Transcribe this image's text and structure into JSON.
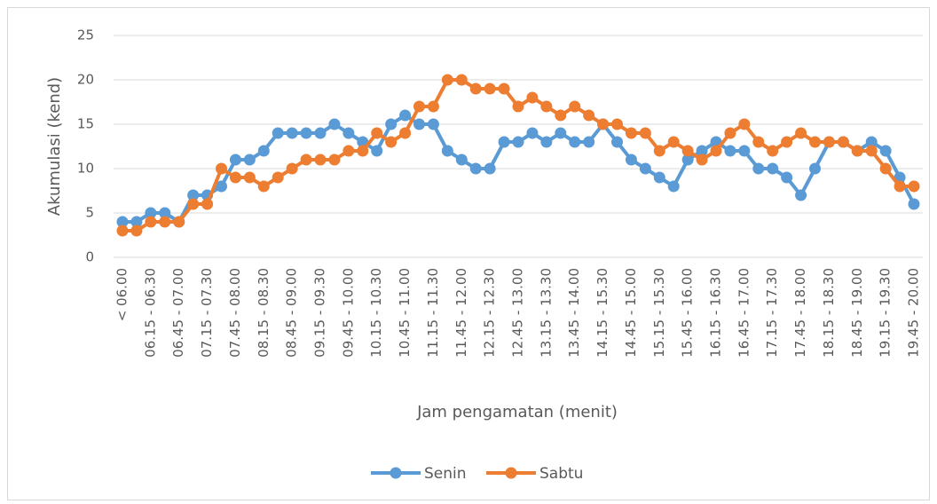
{
  "chart_data": {
    "type": "line",
    "y_label": "Akumulasi (kend)",
    "x_label": "Jam pengamatan (menit)",
    "categories": [
      "< 06.00",
      null,
      "06.15 - 06.30",
      null,
      "06.45 - 07.00",
      null,
      "07.15 - 07.30",
      null,
      "07.45 - 08.00",
      null,
      "08.15 - 08.30",
      null,
      "08.45 - 09.00",
      null,
      "09.15 - 09.30",
      null,
      "09.45 - 10.00",
      null,
      "10.15 - 10.30",
      null,
      "10.45 - 11.00",
      null,
      "11.15 - 11.30",
      null,
      "11.45 - 12.00",
      null,
      "12.15 - 12.30",
      null,
      "12.45 - 13.00",
      null,
      "13.15 - 13.30",
      null,
      "13.45 - 14.00",
      null,
      "14.15 - 15.30",
      null,
      "14.45 - 15.00",
      null,
      "15.15 - 15.30",
      null,
      "15.45 - 16.00",
      null,
      "16.15 - 16.30",
      null,
      "16.45 - 17.00",
      null,
      "17.15 - 17.30",
      null,
      "17.45 - 18.00",
      null,
      "18.15 - 18.30",
      null,
      "18.45 - 19.00",
      null,
      "19.15 - 19.30",
      null,
      "19.45 - 20.00"
    ],
    "series": [
      {
        "name": "Senin",
        "color": "#5b9bd5",
        "values": [
          4,
          4,
          5,
          5,
          4,
          7,
          7,
          8,
          11,
          11,
          12,
          14,
          14,
          14,
          14,
          15,
          14,
          13,
          12,
          15,
          16,
          15,
          15,
          12,
          11,
          10,
          10,
          13,
          13,
          14,
          13,
          14,
          13,
          13,
          15,
          13,
          11,
          10,
          9,
          8,
          11,
          12,
          13,
          12,
          12,
          10,
          10,
          9,
          7,
          10,
          13,
          13,
          12,
          13,
          12,
          9,
          6
        ]
      },
      {
        "name": "Sabtu",
        "color": "#ed7d31",
        "values": [
          3,
          3,
          4,
          4,
          4,
          6,
          6,
          10,
          9,
          9,
          8,
          9,
          10,
          11,
          11,
          11,
          12,
          12,
          14,
          13,
          14,
          17,
          17,
          20,
          20,
          19,
          19,
          19,
          17,
          18,
          17,
          16,
          17,
          16,
          15,
          15,
          14,
          14,
          12,
          13,
          12,
          11,
          12,
          14,
          15,
          13,
          12,
          13,
          14,
          13,
          13,
          13,
          12,
          12,
          10,
          8,
          8
        ]
      }
    ],
    "ylim": [
      0,
      25
    ],
    "yticks": [
      0,
      5,
      10,
      15,
      20,
      25
    ],
    "grid": true,
    "legend": "bottom"
  }
}
